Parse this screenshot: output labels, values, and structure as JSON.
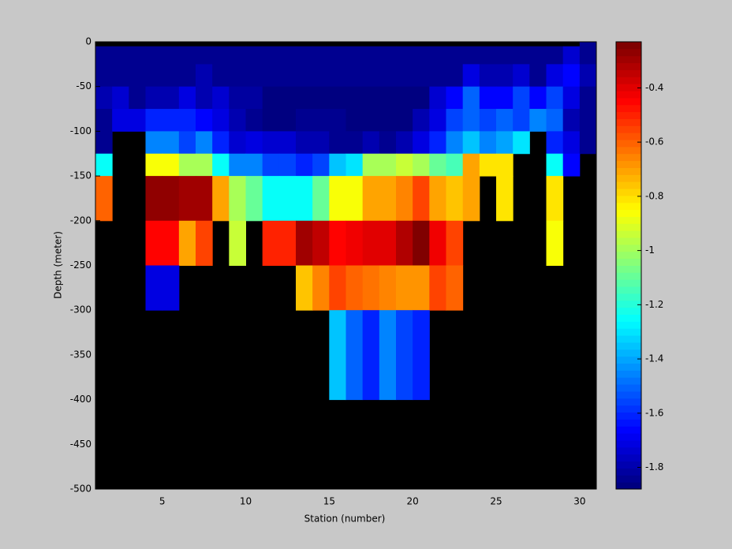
{
  "chart_data": {
    "type": "heatmap",
    "colormap": "jet",
    "grid": false,
    "xlabel": "Station (number)",
    "ylabel": "Depth (meter)",
    "xlim": [
      1,
      31
    ],
    "ylim": [
      -500,
      0
    ],
    "xticks": [
      5,
      10,
      15,
      20,
      25,
      30
    ],
    "yticks": [
      0,
      -50,
      -100,
      -150,
      -200,
      -250,
      -300,
      -350,
      -400,
      -450,
      -500
    ],
    "x_edges": [
      1,
      2,
      3,
      4,
      5,
      6,
      7,
      8,
      9,
      10,
      11,
      12,
      13,
      14,
      15,
      16,
      17,
      18,
      19,
      20,
      21,
      22,
      23,
      24,
      25,
      26,
      27,
      28,
      29,
      30,
      31
    ],
    "y_edges": [
      0,
      -5,
      -25,
      -50,
      -75,
      -100,
      -125,
      -150,
      -200,
      -250,
      -300,
      -400,
      -500
    ],
    "clim": [
      -1.88,
      -0.23
    ],
    "cticks": [
      -0.4,
      -0.6,
      -0.8,
      -1,
      -1.2,
      -1.4,
      -1.6,
      -1.8
    ],
    "values": [
      [
        null,
        null,
        null,
        null,
        null,
        null,
        null,
        null,
        null,
        null,
        null,
        null,
        null,
        null,
        null,
        null,
        null,
        null,
        null,
        null,
        null,
        null,
        null,
        null,
        null,
        null,
        null,
        null,
        null,
        -1.85
      ],
      [
        -1.85,
        -1.85,
        -1.85,
        -1.85,
        -1.85,
        -1.85,
        -1.85,
        -1.85,
        -1.85,
        -1.85,
        -1.85,
        -1.85,
        -1.85,
        -1.85,
        -1.85,
        -1.85,
        -1.85,
        -1.85,
        -1.85,
        -1.85,
        -1.85,
        -1.85,
        -1.85,
        -1.85,
        -1.85,
        -1.85,
        -1.85,
        -1.85,
        -1.75,
        -1.85
      ],
      [
        -1.85,
        -1.85,
        -1.85,
        -1.85,
        -1.85,
        -1.85,
        -1.8,
        -1.85,
        -1.85,
        -1.85,
        -1.85,
        -1.85,
        -1.85,
        -1.85,
        -1.85,
        -1.85,
        -1.85,
        -1.85,
        -1.85,
        -1.85,
        -1.85,
        -1.85,
        -1.7,
        -1.8,
        -1.8,
        -1.75,
        -1.85,
        -1.7,
        -1.65,
        -1.8
      ],
      [
        -1.8,
        -1.75,
        -1.85,
        -1.8,
        -1.8,
        -1.7,
        -1.8,
        -1.75,
        -1.82,
        -1.82,
        -1.87,
        -1.87,
        -1.87,
        -1.87,
        -1.87,
        -1.87,
        -1.87,
        -1.87,
        -1.87,
        -1.87,
        -1.75,
        -1.65,
        -1.5,
        -1.65,
        -1.65,
        -1.55,
        -1.65,
        -1.55,
        -1.7,
        -1.85
      ],
      [
        -1.85,
        -1.7,
        -1.7,
        -1.6,
        -1.6,
        -1.6,
        -1.65,
        -1.7,
        -1.8,
        -1.85,
        -1.87,
        -1.87,
        -1.85,
        -1.85,
        -1.85,
        -1.87,
        -1.87,
        -1.87,
        -1.87,
        -1.8,
        -1.7,
        -1.55,
        -1.5,
        -1.55,
        -1.5,
        -1.55,
        -1.45,
        -1.5,
        -1.8,
        -1.85
      ],
      [
        -1.85,
        null,
        null,
        -1.45,
        -1.45,
        -1.55,
        -1.45,
        -1.6,
        -1.75,
        -1.7,
        -1.75,
        -1.75,
        -1.8,
        -1.8,
        -1.85,
        -1.85,
        -1.8,
        -1.85,
        -1.8,
        -1.7,
        -1.6,
        -1.45,
        -1.35,
        -1.45,
        -1.4,
        -1.3,
        null,
        -1.6,
        -1.7,
        -1.85
      ],
      [
        -1.25,
        null,
        null,
        -0.85,
        -0.85,
        -1.0,
        -1.0,
        -1.25,
        -1.45,
        -1.45,
        -1.55,
        -1.55,
        -1.6,
        -1.55,
        -1.35,
        -1.3,
        -1.0,
        -1.0,
        -0.95,
        -1.0,
        -1.1,
        -1.15,
        -0.7,
        -0.8,
        -0.8,
        null,
        null,
        -1.25,
        -1.65,
        null
      ],
      [
        -0.6,
        null,
        null,
        -0.27,
        -0.27,
        -0.3,
        -0.3,
        -0.7,
        -1.0,
        -1.1,
        -1.25,
        -1.25,
        -1.25,
        -1.1,
        -0.85,
        -0.85,
        -0.7,
        -0.7,
        -0.65,
        -0.55,
        -0.7,
        -0.75,
        -0.7,
        null,
        -0.8,
        null,
        null,
        -0.8,
        null,
        null
      ],
      [
        null,
        null,
        null,
        -0.45,
        -0.45,
        -0.7,
        -0.55,
        null,
        -0.95,
        null,
        -0.5,
        -0.5,
        -0.3,
        -0.35,
        -0.45,
        -0.42,
        -0.4,
        -0.4,
        -0.32,
        -0.24,
        -0.42,
        -0.55,
        null,
        null,
        null,
        null,
        null,
        -0.85,
        null,
        null
      ],
      [
        null,
        null,
        null,
        -1.7,
        -1.7,
        null,
        null,
        null,
        null,
        null,
        null,
        null,
        -0.75,
        -0.65,
        -0.55,
        -0.6,
        -0.62,
        -0.66,
        -0.68,
        -0.68,
        -0.55,
        -0.6,
        null,
        null,
        null,
        null,
        null,
        null,
        null,
        null
      ],
      [
        null,
        null,
        null,
        null,
        null,
        null,
        null,
        null,
        null,
        null,
        null,
        null,
        null,
        null,
        -1.35,
        -1.5,
        -1.6,
        -1.45,
        -1.55,
        -1.6,
        null,
        null,
        null,
        null,
        null,
        null,
        null,
        null,
        null,
        null
      ],
      [
        null,
        null,
        null,
        null,
        null,
        null,
        null,
        null,
        null,
        null,
        null,
        null,
        null,
        null,
        null,
        null,
        null,
        null,
        null,
        null,
        null,
        null,
        null,
        null,
        null,
        null,
        null,
        null,
        null,
        null
      ]
    ]
  }
}
